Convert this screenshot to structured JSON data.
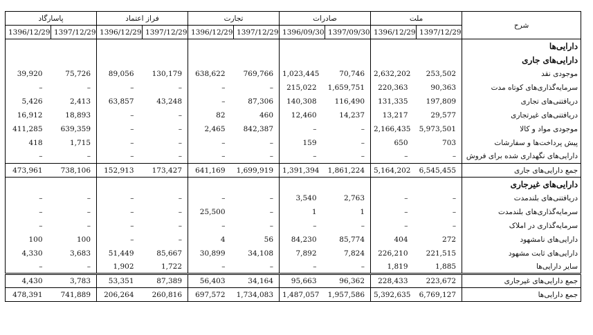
{
  "header": {
    "desc_label": "شرح",
    "groups": [
      "پاسارگاد",
      "فراز اعتماد",
      "تجارت",
      "صادرات",
      "ملت"
    ],
    "dates": [
      [
        "1396/12/29",
        "1397/12/29"
      ],
      [
        "1396/12/29",
        "1397/12/29"
      ],
      [
        "1396/12/29",
        "1397/12/29"
      ],
      [
        "1396/09/30",
        "1397/09/30"
      ],
      [
        "1396/12/29",
        "1397/12/29"
      ]
    ]
  },
  "rows": [
    {
      "label": "دارایی‌ها",
      "type": "head",
      "values": [
        "",
        "",
        "",
        "",
        "",
        "",
        "",
        "",
        "",
        ""
      ]
    },
    {
      "label": "دارایی‌های جاری",
      "type": "head",
      "values": [
        "",
        "",
        "",
        "",
        "",
        "",
        "",
        "",
        "",
        ""
      ]
    },
    {
      "label": "موجودی نقد",
      "type": "item",
      "values": [
        "39,920",
        "75,726",
        "89,056",
        "130,179",
        "638,622",
        "769,766",
        "1,023,445",
        "70,746",
        "2,632,202",
        "253,502"
      ]
    },
    {
      "label": "سرمایه‌گذاری‌های کوتاه مدت",
      "type": "item",
      "values": [
        "–",
        "–",
        "–",
        "–",
        "–",
        "–",
        "215,022",
        "1,659,751",
        "220,363",
        "90,363"
      ]
    },
    {
      "label": "دریافتنی‌های تجاری",
      "type": "item",
      "values": [
        "5,426",
        "2,413",
        "63,857",
        "43,248",
        "–",
        "87,306",
        "140,308",
        "116,490",
        "131,335",
        "197,809"
      ]
    },
    {
      "label": "دریافتنی‌های غیرتجاری",
      "type": "item",
      "values": [
        "16,912",
        "18,893",
        "–",
        "–",
        "82",
        "460",
        "12,460",
        "14,237",
        "13,217",
        "29,577"
      ]
    },
    {
      "label": "موجودی مواد و کالا",
      "type": "item",
      "values": [
        "411,285",
        "639,359",
        "–",
        "–",
        "2,465",
        "842,387",
        "–",
        "–",
        "2,166,435",
        "5,973,501"
      ]
    },
    {
      "label": "پیش پرداخت‌ها و سفارشات",
      "type": "item",
      "values": [
        "418",
        "1,715",
        "–",
        "–",
        "–",
        "–",
        "159",
        "–",
        "650",
        "703"
      ]
    },
    {
      "label": "دارایی‌های نگهداری شده برای فروش",
      "type": "item",
      "values": [
        "–",
        "–",
        "–",
        "–",
        "–",
        "–",
        "–",
        "–",
        "–",
        "–"
      ]
    },
    {
      "label": "جمع دارایی‌های جاری",
      "type": "total",
      "values": [
        "473,961",
        "738,106",
        "152,913",
        "173,427",
        "641,169",
        "1,699,919",
        "1,391,394",
        "1,861,224",
        "5,164,202",
        "6,545,455"
      ]
    },
    {
      "label": "دارایی‌های غیرجاری",
      "type": "head",
      "values": [
        "",
        "",
        "",
        "",
        "",
        "",
        "",
        "",
        "",
        ""
      ]
    },
    {
      "label": "دریافتنی‌های بلندمدت",
      "type": "item",
      "values": [
        "–",
        "–",
        "–",
        "–",
        "–",
        "–",
        "3,540",
        "2,763",
        "–",
        "–"
      ]
    },
    {
      "label": "سرمایه‌گذاری‌های بلندمدت",
      "type": "item",
      "values": [
        "–",
        "–",
        "–",
        "–",
        "25,500",
        "–",
        "1",
        "1",
        "–",
        "–"
      ]
    },
    {
      "label": "سرمایه‌گذاری در املاک",
      "type": "item",
      "values": [
        "–",
        "–",
        "–",
        "–",
        "–",
        "–",
        "–",
        "–",
        "–",
        "–"
      ]
    },
    {
      "label": "دارایی‌های نامشهود",
      "type": "item",
      "values": [
        "100",
        "100",
        "–",
        "–",
        "4",
        "56",
        "84,230",
        "85,774",
        "404",
        "272"
      ]
    },
    {
      "label": "دارایی‌های ثابت مشهود",
      "type": "item",
      "values": [
        "4,330",
        "3,683",
        "51,449",
        "85,667",
        "30,899",
        "34,108",
        "7,892",
        "7,824",
        "226,210",
        "221,515"
      ]
    },
    {
      "label": "سایر دارایی‌ها",
      "type": "item",
      "values": [
        "–",
        "–",
        "1,902",
        "1,722",
        "–",
        "–",
        "–",
        "–",
        "1,819",
        "1,885"
      ]
    },
    {
      "label": "جمع دارایی‌های غیرجاری",
      "type": "total2",
      "values": [
        "4,430",
        "3,783",
        "53,351",
        "87,389",
        "56,403",
        "34,164",
        "95,663",
        "96,362",
        "228,433",
        "223,672"
      ]
    },
    {
      "label": "جمع دارایی‌ها",
      "type": "final",
      "values": [
        "478,391",
        "741,889",
        "206,264",
        "260,816",
        "697,572",
        "1,734,083",
        "1,487,057",
        "1,957,586",
        "5,392,635",
        "6,769,127"
      ]
    }
  ]
}
